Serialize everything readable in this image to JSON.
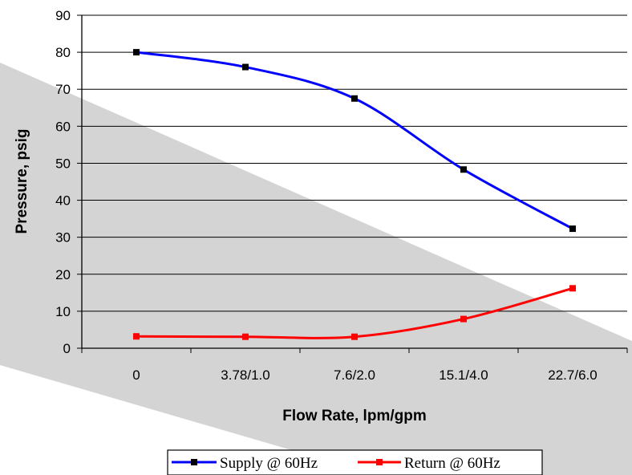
{
  "chart_data": {
    "type": "line",
    "title": "",
    "xlabel": "Flow Rate, lpm/gpm",
    "ylabel": "Pressure, psig",
    "categories": [
      "0",
      "3.78/1.0",
      "7.6/2.0",
      "15.1/4.0",
      "22.7/6.0"
    ],
    "ylim": [
      0,
      90
    ],
    "yticks": [
      0,
      10,
      20,
      30,
      40,
      50,
      60,
      70,
      80,
      90
    ],
    "grid": true,
    "legend_position": "bottom",
    "series": [
      {
        "name": "Supply @ 60Hz",
        "color": "#0000ff",
        "marker_color": "#000000",
        "values": [
          80,
          76,
          67.5,
          48.3,
          32.3
        ]
      },
      {
        "name": "Return @ 60Hz",
        "color": "#ff0000",
        "marker_color": "#ff0000",
        "values": [
          3.2,
          3.1,
          3.1,
          7.9,
          16.2
        ]
      }
    ]
  }
}
